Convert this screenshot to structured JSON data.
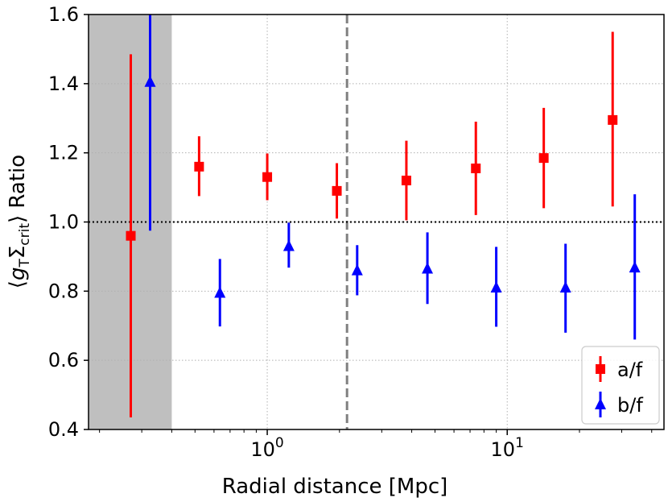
{
  "chart_data": {
    "type": "scatter",
    "title": "",
    "xlabel": "Radial distance [Mpc]",
    "ylabel_parts": {
      "open": "⟨",
      "g": "g",
      "g_sub": "T",
      "sigma": "Σ",
      "sigma_sub": "crit",
      "close": "⟩",
      "rest": " Ratio"
    },
    "xscale": "log",
    "xlim": [
      0.18,
      45
    ],
    "ylim": [
      0.4,
      1.6
    ],
    "x_ticks": [
      {
        "value": 1,
        "base": "10",
        "exp": "0"
      },
      {
        "value": 10,
        "base": "10",
        "exp": "1"
      }
    ],
    "y_ticks": [
      {
        "value": 0.4,
        "label": "0.4"
      },
      {
        "value": 0.6,
        "label": "0.6"
      },
      {
        "value": 0.8,
        "label": "0.8"
      },
      {
        "value": 1.0,
        "label": "1.0"
      },
      {
        "value": 1.2,
        "label": "1.2"
      },
      {
        "value": 1.4,
        "label": "1.4"
      },
      {
        "value": 1.6,
        "label": "1.6"
      }
    ],
    "grid": true,
    "shaded_region": {
      "x0": 0.18,
      "x1": 0.4,
      "color": "#bfbfbf"
    },
    "vertical_line": {
      "x": 2.15,
      "color": "#808080",
      "style": "dashed"
    },
    "reference_line": {
      "y": 1.0,
      "color": "#000000",
      "style": "dotted"
    },
    "legend": {
      "placement": "lower-right"
    },
    "series": [
      {
        "name": "a/f",
        "color": "#ff0000",
        "marker": "square",
        "points": [
          {
            "x": 0.27,
            "y": 0.96,
            "ylo": 0.435,
            "yhi": 1.485
          },
          {
            "x": 0.52,
            "y": 1.16,
            "ylo": 1.075,
            "yhi": 1.248
          },
          {
            "x": 1.0,
            "y": 1.13,
            "ylo": 1.063,
            "yhi": 1.198
          },
          {
            "x": 1.95,
            "y": 1.09,
            "ylo": 1.01,
            "yhi": 1.17
          },
          {
            "x": 3.8,
            "y": 1.12,
            "ylo": 1.005,
            "yhi": 1.235
          },
          {
            "x": 7.4,
            "y": 1.155,
            "ylo": 1.02,
            "yhi": 1.29
          },
          {
            "x": 14.2,
            "y": 1.185,
            "ylo": 1.04,
            "yhi": 1.33
          },
          {
            "x": 27.5,
            "y": 1.295,
            "ylo": 1.045,
            "yhi": 1.55
          }
        ]
      },
      {
        "name": "b/f",
        "color": "#0000ff",
        "marker": "triangle",
        "points": [
          {
            "x": 0.325,
            "y": 1.405,
            "ylo": 0.975,
            "yhi": 1.6
          },
          {
            "x": 0.635,
            "y": 0.795,
            "ylo": 0.698,
            "yhi": 0.893
          },
          {
            "x": 1.23,
            "y": 0.93,
            "ylo": 0.868,
            "yhi": 0.998
          },
          {
            "x": 2.37,
            "y": 0.86,
            "ylo": 0.788,
            "yhi": 0.933
          },
          {
            "x": 4.65,
            "y": 0.865,
            "ylo": 0.763,
            "yhi": 0.97
          },
          {
            "x": 9.0,
            "y": 0.81,
            "ylo": 0.697,
            "yhi": 0.928
          },
          {
            "x": 17.5,
            "y": 0.81,
            "ylo": 0.68,
            "yhi": 0.937
          },
          {
            "x": 34.0,
            "y": 0.868,
            "ylo": 0.66,
            "yhi": 1.08
          }
        ]
      }
    ]
  }
}
